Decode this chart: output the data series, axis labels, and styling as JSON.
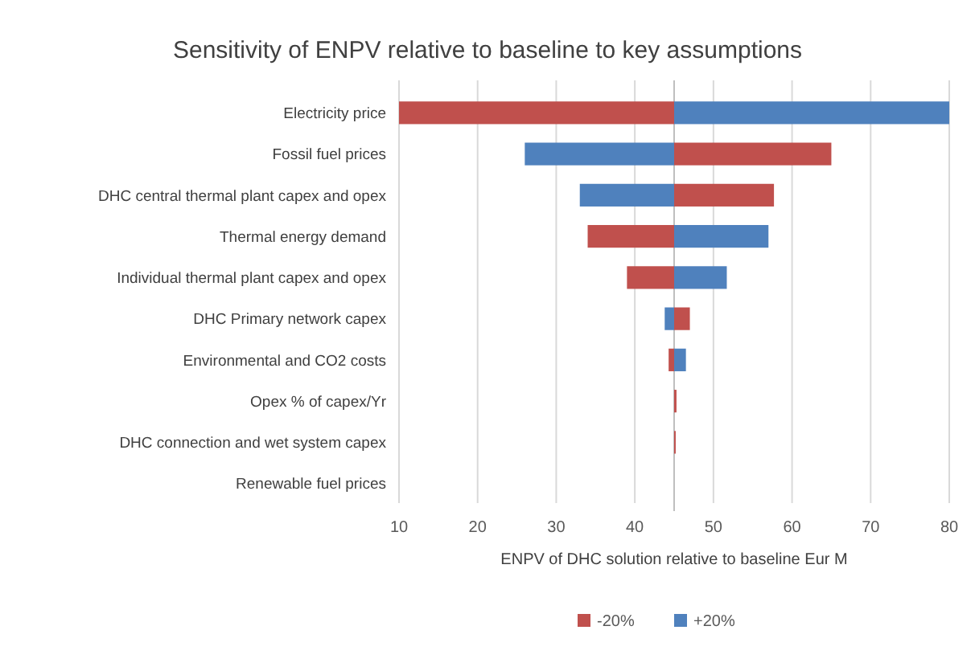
{
  "chart_data": {
    "type": "bar",
    "orientation": "horizontal",
    "title": "Sensitivity of ENPV relative to baseline to key assumptions",
    "xlabel": "ENPV  of DHC solution relative to baseline Eur M",
    "categories": [
      "Electricity price",
      "Fossil fuel prices",
      "DHC central thermal plant capex and opex",
      "Thermal energy demand",
      "Individual thermal plant capex and opex",
      "DHC Primary network capex",
      "Environmental and CO2 costs",
      "Opex % of capex/Yr",
      "DHC connection and wet system capex",
      "Renewable fuel prices"
    ],
    "series": [
      {
        "name": "-20%",
        "color": "#c0504d",
        "base": [
          10,
          45,
          45,
          34,
          39,
          45,
          44.3,
          45,
          45,
          null
        ],
        "values": [
          35,
          20,
          12.7,
          11,
          6,
          2,
          0.7,
          0.3,
          0.2,
          null
        ]
      },
      {
        "name": "+20%",
        "color": "#4f81bd",
        "base": [
          45,
          26,
          33,
          45,
          45,
          43.8,
          45,
          null,
          null,
          null
        ],
        "values": [
          35,
          19,
          12,
          12,
          6.7,
          1.2,
          1.5,
          null,
          null,
          null
        ]
      }
    ],
    "xlim": [
      10,
      80
    ],
    "xticks": [
      10,
      20,
      30,
      40,
      50,
      60,
      70,
      80
    ],
    "grid": "x",
    "legend": "bottom",
    "ref_lines": [
      {
        "axis": "x",
        "value": 45,
        "color": "#bfbfbf"
      }
    ]
  }
}
